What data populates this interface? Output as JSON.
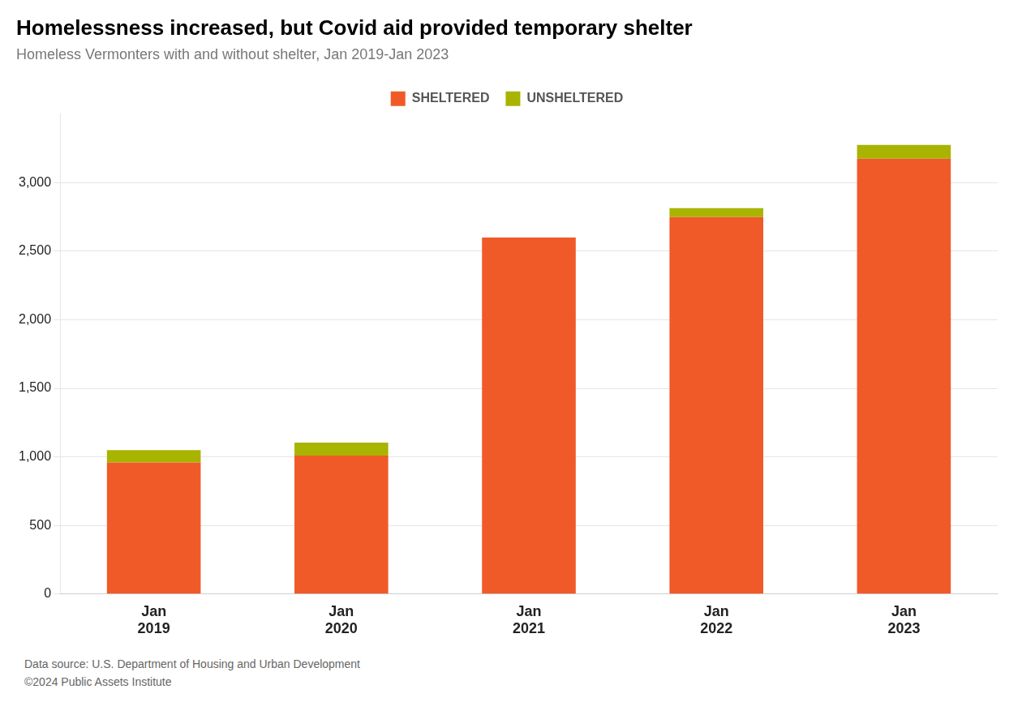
{
  "chart_data": {
    "type": "bar",
    "stacked": true,
    "title": "Homelessness increased, but Covid aid provided temporary shelter",
    "subtitle": "Homeless Vermonters with and without shelter, Jan 2019-Jan 2023",
    "categories": [
      "Jan\n2019",
      "Jan\n2020",
      "Jan\n2021",
      "Jan\n2022",
      "Jan\n2023"
    ],
    "series": [
      {
        "name": "SHELTERED",
        "color": "#F05A28",
        "values": [
          960,
          1010,
          2600,
          2750,
          3175
        ]
      },
      {
        "name": "UNSHELTERED",
        "color": "#A8B400",
        "values": [
          90,
          95,
          0,
          65,
          100
        ]
      }
    ],
    "ylim": [
      0,
      3500
    ],
    "yticks": [
      0,
      500,
      {
        "value": 1000,
        "label": "1,000"
      },
      {
        "value": 1500,
        "label": "1,500"
      },
      {
        "value": 2000,
        "label": "2,000"
      },
      {
        "value": 2500,
        "label": "2,500"
      },
      {
        "value": 3000,
        "label": "3,000"
      }
    ],
    "grid": true,
    "legend": "top",
    "annotations": [
      "Data source: U.S. Department of Housing and Urban Development",
      "©2024 Public Assets Institute"
    ]
  }
}
